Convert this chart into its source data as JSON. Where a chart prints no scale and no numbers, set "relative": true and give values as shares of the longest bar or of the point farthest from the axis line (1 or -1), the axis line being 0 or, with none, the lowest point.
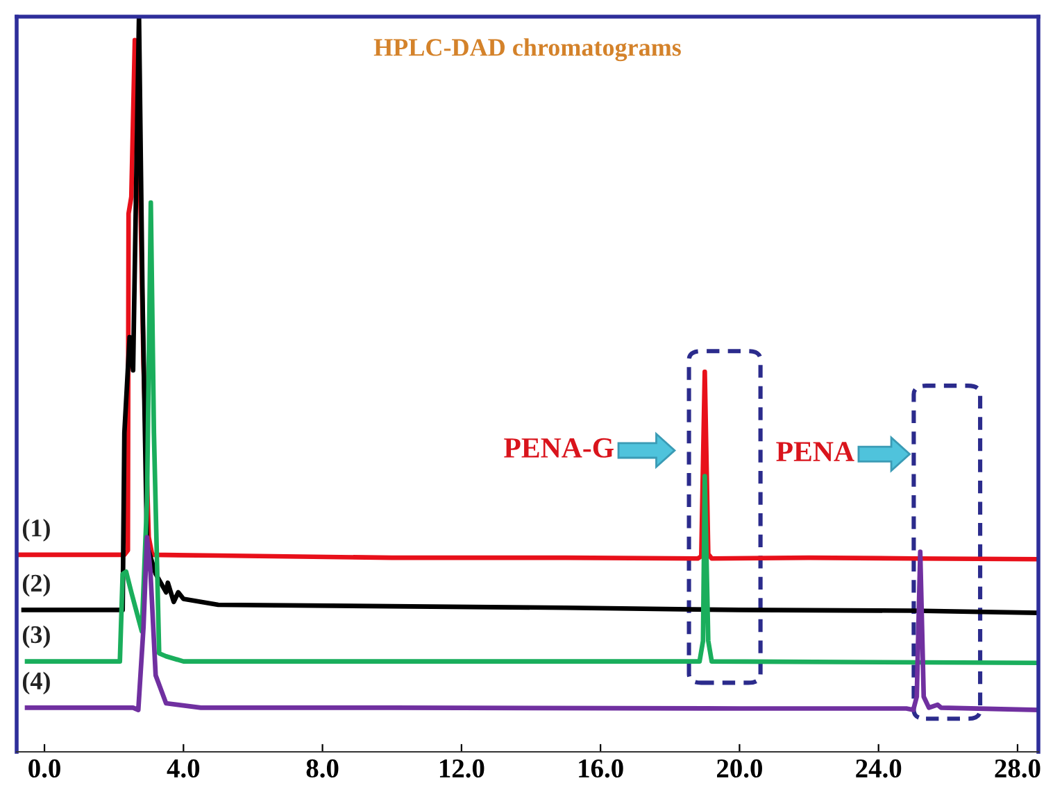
{
  "chart_data": {
    "type": "line",
    "title": "HPLC-DAD chromatograms",
    "relative": true,
    "xlim": [
      -0.8,
      28.6
    ],
    "xticks": [
      {
        "value": 0,
        "label": "0.0"
      },
      {
        "value": 4,
        "label": "4.0"
      },
      {
        "value": 8,
        "label": "8.0"
      },
      {
        "value": 12,
        "label": "12.0"
      },
      {
        "value": 16,
        "label": "16.0"
      },
      {
        "value": 20,
        "label": "20.0"
      },
      {
        "value": 24,
        "label": "24.0"
      },
      {
        "value": 28,
        "label": "28.0"
      }
    ],
    "tick_labels": "x",
    "grid": false,
    "marker": "none",
    "line_style": "solid",
    "series": [
      {
        "name": "(1)",
        "color": "#e8101a",
        "x": [
          -0.8,
          2.3,
          2.4,
          2.42,
          2.5,
          2.6,
          2.7,
          2.85,
          3.0,
          3.1,
          5,
          10,
          15,
          18.8,
          18.9,
          19.0,
          19.1,
          19.2,
          22,
          25,
          28.6
        ],
        "values": [
          0.268,
          0.268,
          0.274,
          0.732,
          0.755,
          0.968,
          0.906,
          0.528,
          0.292,
          0.268,
          0.267,
          0.264,
          0.264,
          0.263,
          0.266,
          0.517,
          0.269,
          0.263,
          0.264,
          0.263,
          0.262
        ]
      },
      {
        "name": "(2)",
        "color": "#000000",
        "x": [
          -0.6,
          2.25,
          2.3,
          2.45,
          2.55,
          2.62,
          2.72,
          2.82,
          2.95,
          3.2,
          3.5,
          3.55,
          3.72,
          3.85,
          4.0,
          5,
          10,
          15,
          20,
          25,
          28.6
        ],
        "values": [
          0.193,
          0.193,
          0.434,
          0.564,
          0.519,
          0.717,
          1.0,
          0.623,
          0.281,
          0.242,
          0.217,
          0.23,
          0.204,
          0.217,
          0.208,
          0.2,
          0.198,
          0.196,
          0.193,
          0.192,
          0.189
        ]
      },
      {
        "name": "(3)",
        "color": "#1aae5c",
        "x": [
          -0.5,
          2.17,
          2.25,
          2.35,
          2.5,
          2.8,
          2.95,
          3.06,
          3.15,
          3.3,
          3.5,
          4,
          10,
          18.85,
          18.95,
          19.0,
          19.1,
          19.2,
          28.6
        ],
        "values": [
          0.123,
          0.123,
          0.242,
          0.245,
          0.217,
          0.164,
          0.34,
          0.747,
          0.434,
          0.134,
          0.13,
          0.123,
          0.123,
          0.123,
          0.151,
          0.375,
          0.151,
          0.123,
          0.121
        ]
      },
      {
        "name": "(4)",
        "color": "#7030a0",
        "x": [
          -0.5,
          2.55,
          2.7,
          2.85,
          2.95,
          3.05,
          3.2,
          3.5,
          4.5,
          10,
          20,
          24.8,
          25.0,
          25.1,
          25.2,
          25.3,
          25.45,
          25.7,
          25.8,
          28.6
        ],
        "values": [
          0.06,
          0.06,
          0.057,
          0.17,
          0.292,
          0.245,
          0.104,
          0.066,
          0.06,
          0.06,
          0.059,
          0.059,
          0.057,
          0.075,
          0.272,
          0.075,
          0.06,
          0.064,
          0.06,
          0.057
        ]
      }
    ],
    "annotations": [
      "PENA-G",
      "PENA"
    ]
  }
}
